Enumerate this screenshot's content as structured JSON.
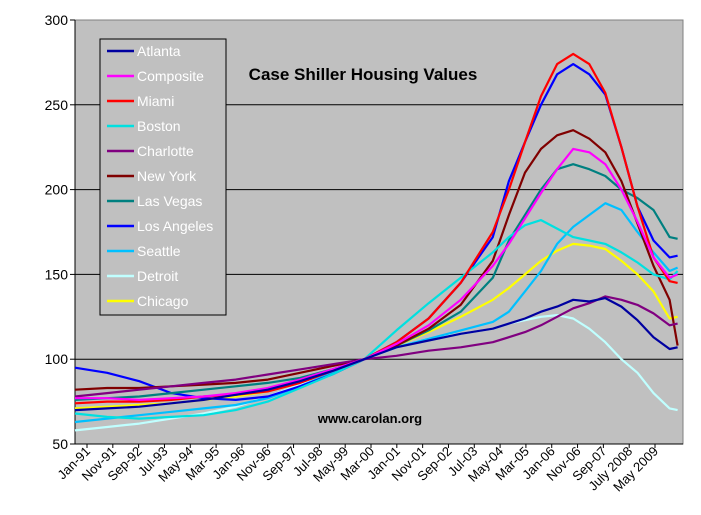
{
  "chart_data": {
    "type": "line",
    "title": "Case Shiller Housing Values",
    "annotation": "www.carolan.org",
    "legend_position": "top-left",
    "grid": "horizontal",
    "ylim": [
      50,
      300
    ],
    "y_ticks": [
      "50",
      "100",
      "150",
      "200",
      "250",
      "300"
    ],
    "x_start": "1991-01",
    "x_end": "2009-12",
    "x_tick_labels": [
      "Jan-91",
      "Nov-91",
      "Sep-92",
      "Jul-93",
      "May-94",
      "Mar-95",
      "Jan-96",
      "Nov-96",
      "Sep-97",
      "Jul-98",
      "May-99",
      "Mar-00",
      "Jan-01",
      "Nov-01",
      "Sep-02",
      "Jul-03",
      "May-04",
      "Mar-05",
      "Jan-06",
      "Nov-06",
      "Sep-07",
      "July 2008",
      "May 2009"
    ],
    "series_dates": [
      "1991-01",
      "1992-01",
      "1993-01",
      "1994-01",
      "1995-01",
      "1996-01",
      "1997-01",
      "1998-01",
      "1999-01",
      "2000-01",
      "2001-01",
      "2002-01",
      "2003-01",
      "2004-01",
      "2004-07",
      "2005-01",
      "2005-07",
      "2006-01",
      "2006-07",
      "2007-01",
      "2007-07",
      "2008-01",
      "2008-07",
      "2009-01",
      "2009-07",
      "2009-10"
    ],
    "series": [
      {
        "name": "Atlanta",
        "color": "#0000a0",
        "values": [
          70,
          71,
          72,
          74,
          76,
          79,
          82,
          87,
          93,
          100,
          107,
          111,
          115,
          118,
          121,
          124,
          128,
          131,
          135,
          134,
          136,
          131,
          123,
          113,
          106,
          107
        ]
      },
      {
        "name": "Composite",
        "color": "#ff00ff",
        "values": [
          77,
          77,
          76,
          77,
          78,
          80,
          83,
          88,
          94,
          100,
          109,
          120,
          135,
          155,
          168,
          183,
          198,
          212,
          224,
          222,
          215,
          200,
          181,
          160,
          148,
          150
        ]
      },
      {
        "name": "Miami",
        "color": "#ff0000",
        "values": [
          74,
          75,
          75,
          76,
          78,
          79,
          81,
          86,
          93,
          100,
          110,
          124,
          145,
          175,
          200,
          228,
          255,
          274,
          280,
          274,
          257,
          225,
          190,
          160,
          146,
          145
        ]
      },
      {
        "name": "Boston",
        "color": "#00e0e0",
        "values": [
          68,
          66,
          65,
          66,
          67,
          70,
          75,
          83,
          91,
          100,
          117,
          133,
          148,
          163,
          172,
          179,
          182,
          177,
          172,
          170,
          168,
          163,
          157,
          150,
          147,
          152
        ]
      },
      {
        "name": "Charlotte",
        "color": "#800080",
        "values": [
          78,
          80,
          82,
          84,
          86,
          88,
          91,
          94,
          97,
          100,
          102,
          105,
          107,
          110,
          113,
          116,
          120,
          125,
          130,
          133,
          137,
          135,
          132,
          127,
          120,
          121
        ]
      },
      {
        "name": "New York",
        "color": "#800000",
        "values": [
          82,
          83,
          83,
          84,
          85,
          86,
          88,
          92,
          96,
          100,
          108,
          118,
          132,
          158,
          185,
          210,
          224,
          232,
          235,
          230,
          222,
          205,
          180,
          155,
          135,
          108
        ]
      },
      {
        "name": "Las Vegas",
        "color": "#008080",
        "values": [
          76,
          77,
          78,
          80,
          82,
          84,
          86,
          89,
          94,
          100,
          108,
          117,
          128,
          148,
          170,
          185,
          200,
          212,
          215,
          212,
          208,
          200,
          195,
          188,
          172,
          171
        ]
      },
      {
        "name": "Los Angeles",
        "color": "#0000ff",
        "values": [
          95,
          92,
          87,
          80,
          77,
          76,
          78,
          84,
          91,
          100,
          110,
          124,
          145,
          172,
          205,
          228,
          250,
          268,
          274,
          268,
          256,
          225,
          190,
          170,
          160,
          161
        ]
      },
      {
        "name": "Seattle",
        "color": "#00c0ff",
        "values": [
          63,
          65,
          67,
          69,
          71,
          73,
          77,
          84,
          92,
          100,
          107,
          112,
          117,
          122,
          128,
          140,
          152,
          168,
          178,
          185,
          192,
          188,
          175,
          163,
          152,
          154
        ]
      },
      {
        "name": "Detroit",
        "color": "#c0ffff",
        "values": [
          58,
          60,
          62,
          65,
          68,
          72,
          78,
          85,
          92,
          100,
          107,
          112,
          115,
          118,
          121,
          123,
          125,
          126,
          124,
          118,
          110,
          100,
          92,
          80,
          71,
          70
        ]
      },
      {
        "name": "Chicago",
        "color": "#ffff00",
        "values": [
          71,
          72,
          73,
          74,
          76,
          78,
          81,
          86,
          92,
          100,
          108,
          116,
          125,
          135,
          142,
          150,
          158,
          164,
          168,
          167,
          165,
          158,
          150,
          140,
          124,
          125
        ]
      }
    ]
  }
}
